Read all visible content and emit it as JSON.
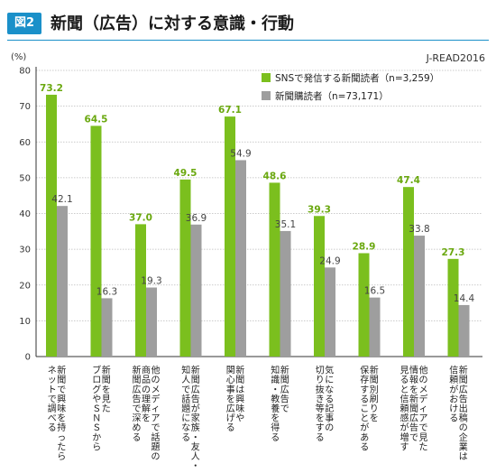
{
  "header": {
    "badge": "図2",
    "title": "新聞（広告）に対する意識・行動",
    "source": "J-READ2016"
  },
  "colors": {
    "accent": "#1a90c9",
    "series1": "#7bbf1e",
    "series2": "#9e9e9e"
  },
  "chart_data": {
    "type": "bar",
    "ylabel": "(%)",
    "ylim": [
      0,
      80
    ],
    "yticks": [
      0,
      10,
      20,
      30,
      40,
      50,
      60,
      70,
      80
    ],
    "grid": true,
    "legend_position": "top-right",
    "categories": [
      "新聞で興味を持ったらネットで調べる",
      "新聞を見たブログやＳＮＳから",
      "他のメディアで話題の商品の理解を新聞広告で深める",
      "新聞広告が家族・友人・知人で話題になる",
      "新聞は興味や関心事を広げる",
      "新聞広告で知識・教養を得る",
      "気になる記事の切り抜き等をする",
      "新聞別刷りを保存することがある",
      "他のメディアで見た情報を新聞広告で見ると信頼感が増す",
      "新聞広告出稿の企業は信頼がおける"
    ],
    "category_lines": [
      [
        "新聞で興味を持ったら",
        "ネットで調べる"
      ],
      [
        "新聞を見た",
        "ブログやＳＮＳから"
      ],
      [
        "他のメディアで話題の",
        "商品の理解を",
        "新聞広告で深める"
      ],
      [
        "新聞広告が家族・友人・",
        "知人で話題になる"
      ],
      [
        "新聞は興味や",
        "関心事を広げる"
      ],
      [
        "新聞広告で",
        "知識・教養を得る"
      ],
      [
        "気になる記事の",
        "切り抜き等をする"
      ],
      [
        "新聞別刷りを",
        "保存することがある"
      ],
      [
        "他のメディアで見た",
        "情報を新聞広告で",
        "見ると信頼感が増す"
      ],
      [
        "新聞広告出稿の企業は",
        "信頼がおける"
      ]
    ],
    "series": [
      {
        "name": "SNSで発信する新聞読者（n=3,259）",
        "values": [
          73.2,
          64.5,
          37.0,
          49.5,
          67.1,
          48.6,
          39.3,
          28.9,
          47.4,
          27.3
        ]
      },
      {
        "name": "新聞購読者（n=73,171）",
        "values": [
          42.1,
          16.3,
          19.3,
          36.9,
          54.9,
          35.1,
          24.9,
          16.5,
          33.8,
          14.4
        ]
      }
    ]
  }
}
